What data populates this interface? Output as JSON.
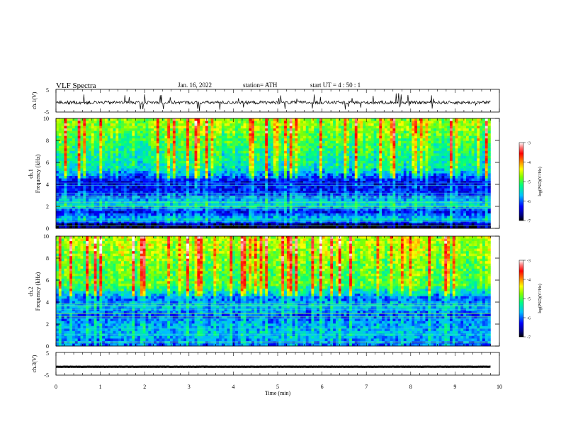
{
  "header": {
    "title": "VLF  Spectra",
    "date": "Jan. 16, 2022",
    "station": "station= ATH",
    "start": "start  UT  =   4  : 50 : 1"
  },
  "chart_data": [
    {
      "type": "line",
      "panel": "ch1-waveform",
      "ylabel": "ch.1(V)",
      "ylim": [
        -5,
        5
      ],
      "yticks": [
        "5",
        "-5"
      ],
      "x_range_min": [
        0,
        9.8
      ],
      "baseline": -0.8,
      "color": "#000000"
    },
    {
      "type": "heatmap",
      "panel": "ch1-spectrogram",
      "ylabel": "Frequency (kHz)",
      "channel": "ch.1",
      "ylim": [
        0,
        10
      ],
      "yticks": [
        "0",
        "2",
        "4",
        "6",
        "8",
        "10"
      ],
      "x_range_min": [
        0,
        9.8
      ],
      "mean_log_psd_by_freq": [
        {
          "f": 0.25,
          "v": -6.9
        },
        {
          "f": 0.8,
          "v": -5.6
        },
        {
          "f": 1.5,
          "v": -6.3
        },
        {
          "f": 2.2,
          "v": -5.5
        },
        {
          "f": 3.2,
          "v": -6.2
        },
        {
          "f": 4.2,
          "v": -6.4
        },
        {
          "f": 5.5,
          "v": -5.4
        },
        {
          "f": 7.0,
          "v": -5.2
        },
        {
          "f": 8.5,
          "v": -4.9
        },
        {
          "f": 9.6,
          "v": -4.7
        }
      ]
    },
    {
      "type": "heatmap",
      "panel": "ch2-spectrogram",
      "ylabel": "Frequency (kHz)",
      "channel": "ch.2",
      "ylim": [
        0,
        10
      ],
      "yticks": [
        "0",
        "2",
        "4",
        "6",
        "8",
        "10"
      ],
      "x_range_min": [
        0,
        9.8
      ],
      "mean_log_psd_by_freq": [
        {
          "f": 0.25,
          "v": -6.0
        },
        {
          "f": 1.0,
          "v": -5.7
        },
        {
          "f": 2.0,
          "v": -5.8
        },
        {
          "f": 2.8,
          "v": -6.1
        },
        {
          "f": 3.6,
          "v": -5.7
        },
        {
          "f": 4.3,
          "v": -6.0
        },
        {
          "f": 5.5,
          "v": -5.0
        },
        {
          "f": 7.0,
          "v": -4.9
        },
        {
          "f": 8.5,
          "v": -4.7
        },
        {
          "f": 9.6,
          "v": -4.6
        }
      ]
    },
    {
      "type": "line",
      "panel": "ch3-waveform",
      "ylabel": "ch.3(V)",
      "ylim": [
        -5,
        5
      ],
      "yticks": [
        "5",
        "-5"
      ],
      "x_range_min": [
        0,
        9.8
      ],
      "baseline": -1.3,
      "color": "#000000"
    }
  ],
  "x_axis": {
    "label": "Time  (min)",
    "ticks": [
      "0",
      "1",
      "2",
      "3",
      "4",
      "5",
      "6",
      "7",
      "8",
      "9",
      "10"
    ],
    "range": [
      0,
      10
    ]
  },
  "colorbar": {
    "label": "log(PSD)(V²/Hz)",
    "ticks": [
      "-3",
      "-4",
      "-5",
      "-6",
      "-7"
    ],
    "range": [
      -7,
      -3
    ],
    "stops": [
      "#000000",
      "#000080",
      "#0000ff",
      "#00bfff",
      "#00ff80",
      "#80ff00",
      "#ffff00",
      "#ff8000",
      "#ff0000",
      "#ff8080",
      "#ffffff"
    ]
  }
}
